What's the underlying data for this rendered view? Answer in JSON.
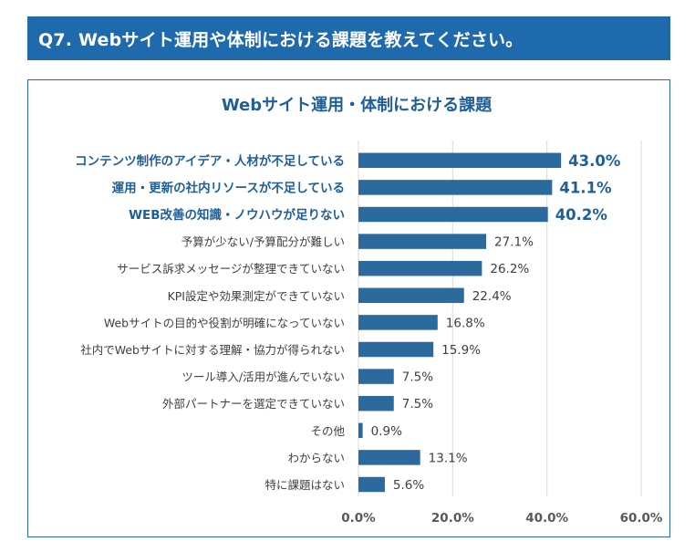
{
  "question_header": "Q7. Webサイト運用や体制における課題を教えてください。",
  "chart_data": {
    "type": "bar",
    "orientation": "horizontal",
    "title": "Webサイト運用・体制における課題",
    "categories": [
      "コンテンツ制作のアイデア・人材が不足している",
      "運用・更新の社内リソースが不足している",
      "WEB改善の知識・ノウハウが足りない",
      "予算が少ない/予算配分が難しい",
      "サービス訴求メッセージが整理できていない",
      "KPI設定や効果測定ができていない",
      "Webサイトの目的や役割が明確になっていない",
      "社内でWebサイトに対する理解・協力が得られない",
      "ツール導入/活用が進んでいない",
      "外部パートナーを選定できていない",
      "その他",
      "わからない",
      "特に課題はない"
    ],
    "values": [
      43.0,
      41.1,
      40.2,
      27.1,
      26.2,
      22.4,
      16.8,
      15.9,
      7.5,
      7.5,
      0.9,
      13.1,
      5.6
    ],
    "value_labels": [
      "43.0%",
      "41.1%",
      "40.2%",
      "27.1%",
      "26.2%",
      "22.4%",
      "16.8%",
      "15.9%",
      "7.5%",
      "7.5%",
      "0.9%",
      "13.1%",
      "5.6%"
    ],
    "highlighted_top": 3,
    "xlim": [
      0,
      60
    ],
    "xticks": [
      0,
      20,
      40,
      60
    ],
    "xtick_labels": [
      "0.0%",
      "20.0%",
      "40.0%",
      "60.0%"
    ],
    "grid": true,
    "bar_color": "#2c6a9e",
    "highlight_color": "#1f5f99"
  }
}
